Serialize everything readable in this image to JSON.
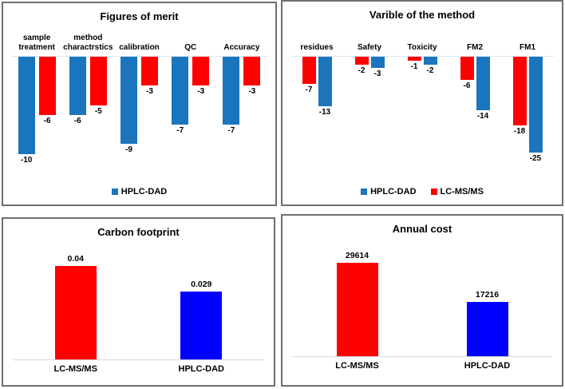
{
  "figure": {
    "background": "#ffffff",
    "panel_border_color": "#6f6f6f",
    "axis_line_color": "#dce6f1",
    "colors": {
      "hplc_dad_top_blue": "#1B75BC",
      "lc_ms_ms_red": "#FF0000",
      "hplc_dad_bottom_blue": "#0000FF"
    }
  },
  "chart_data": [
    {
      "id": "figures-of-merit",
      "type": "bar",
      "title": "Figures of merit",
      "orientation": "down",
      "grid": false,
      "legend_position": "bottom",
      "categories": [
        "sample treatment",
        "method charactrstics",
        "calibration",
        "QC",
        "Accuracy"
      ],
      "series": [
        {
          "name": "HPLC-DAD",
          "color": "#1B75BC",
          "values": [
            -10,
            -6,
            -9,
            -7,
            -7
          ]
        },
        {
          "name": "",
          "color": "#FF0000",
          "values": [
            -6,
            -5,
            -3,
            -3,
            -3
          ]
        }
      ],
      "legend": [
        {
          "label": "HPLC-DAD",
          "color": "#1B75BC"
        }
      ],
      "ylim": [
        -13,
        0
      ]
    },
    {
      "id": "varible-of-the-method",
      "type": "bar",
      "title": "Varible of the method",
      "orientation": "down",
      "grid": false,
      "legend_position": "bottom",
      "categories": [
        "residues",
        "Safety",
        "Toxicity",
        "FM2",
        "FM1"
      ],
      "series": [
        {
          "name": "LC-MS/MS",
          "color": "#FF0000",
          "values": [
            -7,
            -2,
            -1,
            -6,
            -18
          ]
        },
        {
          "name": "HPLC-DAD",
          "color": "#1B75BC",
          "values": [
            -13,
            -3,
            -2,
            -14,
            -25
          ]
        }
      ],
      "legend": [
        {
          "label": "HPLC-DAD",
          "color": "#1B75BC"
        },
        {
          "label": "LC-MS/MS",
          "color": "#FF0000"
        }
      ],
      "ylim": [
        -33,
        0
      ]
    },
    {
      "id": "carbon-footprint",
      "type": "bar",
      "title": "Carbon footprint",
      "orientation": "up",
      "grid": false,
      "categories": [
        "LC-MS/MS",
        "HPLC-DAD"
      ],
      "values": [
        0.04,
        0.029
      ],
      "value_labels": [
        "0.04",
        "0.029"
      ],
      "bar_colors": [
        "#FF0000",
        "#0000FF"
      ],
      "ylim": [
        0,
        0.045
      ]
    },
    {
      "id": "annual-cost",
      "type": "bar",
      "title": "Annual cost",
      "orientation": "up",
      "grid": false,
      "categories": [
        "LC-MS/MS",
        "HPLC-DAD"
      ],
      "values": [
        29614,
        17216
      ],
      "value_labels": [
        "29614",
        "17216"
      ],
      "bar_colors": [
        "#FF0000",
        "#0000FF"
      ],
      "ylim": [
        0,
        33000
      ]
    }
  ]
}
